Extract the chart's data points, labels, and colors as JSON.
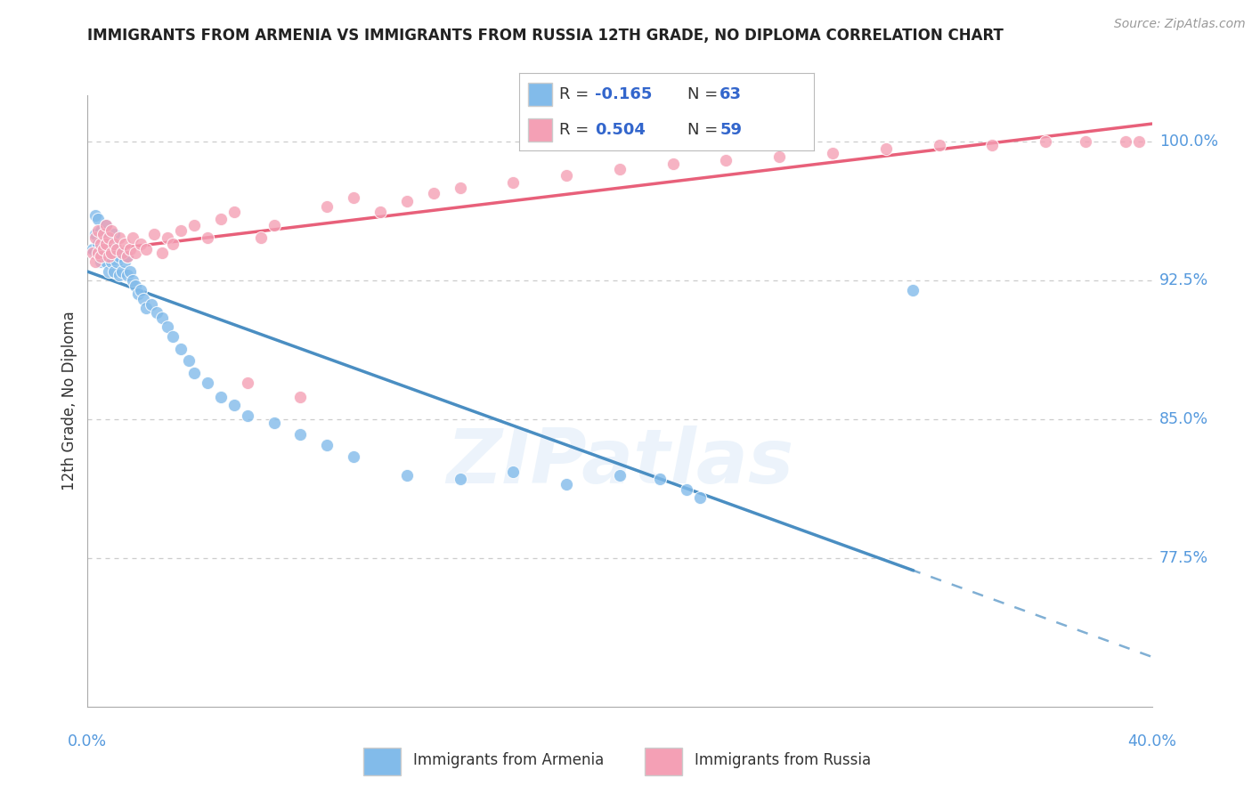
{
  "title": "IMMIGRANTS FROM ARMENIA VS IMMIGRANTS FROM RUSSIA 12TH GRADE, NO DIPLOMA CORRELATION CHART",
  "source": "Source: ZipAtlas.com",
  "ylabel": "12th Grade, No Diploma",
  "xlim": [
    0.0,
    0.4
  ],
  "ylim": [
    0.695,
    1.025
  ],
  "ytick_labels": [
    "100.0%",
    "92.5%",
    "85.0%",
    "77.5%"
  ],
  "ytick_values": [
    1.0,
    0.925,
    0.85,
    0.775
  ],
  "xtick_label_left": "0.0%",
  "xtick_label_right": "40.0%",
  "legend_r_armenia": "-0.165",
  "legend_n_armenia": "63",
  "legend_r_russia": "0.504",
  "legend_n_russia": "59",
  "color_armenia": "#82BBEA",
  "color_russia": "#F4A0B5",
  "trendline_armenia_color": "#4A8EC2",
  "trendline_russia_color": "#E8607A",
  "watermark": "ZIPatlas",
  "armenia_x": [
    0.002,
    0.003,
    0.003,
    0.004,
    0.004,
    0.005,
    0.005,
    0.005,
    0.006,
    0.006,
    0.006,
    0.007,
    0.007,
    0.007,
    0.008,
    0.008,
    0.008,
    0.009,
    0.009,
    0.01,
    0.01,
    0.01,
    0.011,
    0.011,
    0.012,
    0.012,
    0.013,
    0.013,
    0.014,
    0.015,
    0.015,
    0.016,
    0.017,
    0.018,
    0.019,
    0.02,
    0.021,
    0.022,
    0.024,
    0.026,
    0.028,
    0.03,
    0.032,
    0.035,
    0.038,
    0.04,
    0.045,
    0.05,
    0.055,
    0.06,
    0.07,
    0.08,
    0.09,
    0.1,
    0.12,
    0.14,
    0.16,
    0.18,
    0.2,
    0.215,
    0.225,
    0.23,
    0.31
  ],
  "armenia_y": [
    0.942,
    0.95,
    0.96,
    0.945,
    0.958,
    0.952,
    0.94,
    0.935,
    0.948,
    0.942,
    0.938,
    0.955,
    0.945,
    0.935,
    0.948,
    0.94,
    0.93,
    0.945,
    0.935,
    0.95,
    0.94,
    0.93,
    0.942,
    0.935,
    0.938,
    0.928,
    0.94,
    0.93,
    0.935,
    0.938,
    0.928,
    0.93,
    0.925,
    0.922,
    0.918,
    0.92,
    0.915,
    0.91,
    0.912,
    0.908,
    0.905,
    0.9,
    0.895,
    0.888,
    0.882,
    0.875,
    0.87,
    0.862,
    0.858,
    0.852,
    0.848,
    0.842,
    0.836,
    0.83,
    0.82,
    0.818,
    0.822,
    0.815,
    0.82,
    0.818,
    0.812,
    0.808,
    0.92
  ],
  "russia_x": [
    0.002,
    0.003,
    0.003,
    0.004,
    0.004,
    0.005,
    0.005,
    0.006,
    0.006,
    0.007,
    0.007,
    0.008,
    0.008,
    0.009,
    0.009,
    0.01,
    0.011,
    0.012,
    0.013,
    0.014,
    0.015,
    0.016,
    0.017,
    0.018,
    0.02,
    0.022,
    0.025,
    0.028,
    0.03,
    0.032,
    0.035,
    0.04,
    0.045,
    0.05,
    0.055,
    0.06,
    0.065,
    0.07,
    0.08,
    0.09,
    0.1,
    0.11,
    0.12,
    0.13,
    0.14,
    0.16,
    0.18,
    0.2,
    0.22,
    0.24,
    0.26,
    0.28,
    0.3,
    0.32,
    0.34,
    0.36,
    0.375,
    0.39,
    0.395
  ],
  "russia_y": [
    0.94,
    0.948,
    0.935,
    0.952,
    0.94,
    0.945,
    0.938,
    0.95,
    0.942,
    0.955,
    0.945,
    0.948,
    0.938,
    0.952,
    0.94,
    0.945,
    0.942,
    0.948,
    0.94,
    0.945,
    0.938,
    0.942,
    0.948,
    0.94,
    0.945,
    0.942,
    0.95,
    0.94,
    0.948,
    0.945,
    0.952,
    0.955,
    0.948,
    0.958,
    0.962,
    0.87,
    0.948,
    0.955,
    0.862,
    0.965,
    0.97,
    0.962,
    0.968,
    0.972,
    0.975,
    0.978,
    0.982,
    0.985,
    0.988,
    0.99,
    0.992,
    0.994,
    0.996,
    0.998,
    0.998,
    1.0,
    1.0,
    1.0,
    1.0
  ]
}
